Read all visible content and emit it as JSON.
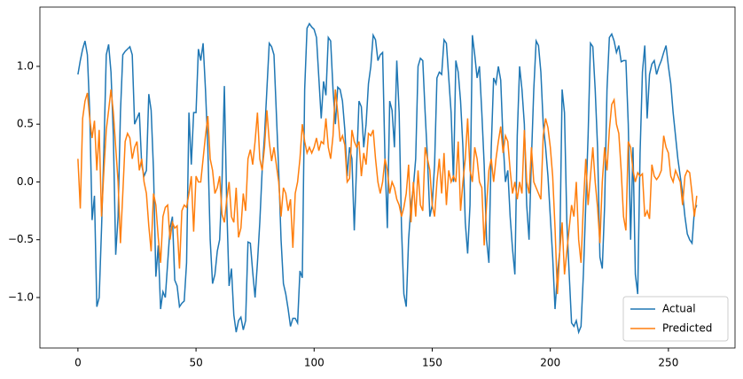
{
  "chart_data": {
    "type": "line",
    "x": [
      0,
      1,
      2,
      3,
      4,
      5,
      6,
      7,
      8,
      9,
      10,
      11,
      12,
      13,
      14,
      15,
      16,
      17,
      18,
      19,
      20,
      21,
      22,
      23,
      24,
      25,
      26,
      27,
      28,
      29,
      30,
      31,
      32,
      33,
      34,
      35,
      36,
      37,
      38,
      39,
      40,
      41,
      42,
      43,
      44,
      45,
      46,
      47,
      48,
      49,
      50,
      51,
      52,
      53,
      54,
      55,
      56,
      57,
      58,
      59,
      60,
      61,
      62,
      63,
      64,
      65,
      66,
      67,
      68,
      69,
      70,
      71,
      72,
      73,
      74,
      75,
      76,
      77,
      78,
      79,
      80,
      81,
      82,
      83,
      84,
      85,
      86,
      87,
      88,
      89,
      90,
      91,
      92,
      93,
      94,
      95,
      96,
      97,
      98,
      99,
      100,
      101,
      102,
      103,
      104,
      105,
      106,
      107,
      108,
      109,
      110,
      111,
      112,
      113,
      114,
      115,
      116,
      117,
      118,
      119,
      120,
      121,
      122,
      123,
      124,
      125,
      126,
      127,
      128,
      129,
      130,
      131,
      132,
      133,
      134,
      135,
      136,
      137,
      138,
      139,
      140,
      141,
      142,
      143,
      144,
      145,
      146,
      147,
      148,
      149,
      150,
      151,
      152,
      153,
      154,
      155,
      156,
      157,
      158,
      159,
      160,
      161,
      162,
      163,
      164,
      165,
      166,
      167,
      168,
      169,
      170,
      171,
      172,
      173,
      174,
      175,
      176,
      177,
      178,
      179,
      180,
      181,
      182,
      183,
      184,
      185,
      186,
      187,
      188,
      189,
      190,
      191,
      192,
      193,
      194,
      195,
      196,
      197,
      198,
      199,
      200,
      201,
      202,
      203,
      204,
      205,
      206,
      207,
      208,
      209,
      210,
      211,
      212,
      213,
      214,
      215,
      216,
      217,
      218,
      219,
      220,
      221,
      222,
      223,
      224,
      225,
      226,
      227,
      228,
      229,
      230,
      231,
      232,
      233,
      234,
      235,
      236,
      237,
      238,
      239,
      240,
      241,
      242,
      243,
      244,
      245,
      246,
      247,
      248,
      249,
      250,
      251,
      252,
      253,
      254,
      255,
      256,
      257,
      258,
      259,
      260,
      261,
      262
    ],
    "series": [
      {
        "name": "Actual",
        "color": "#1f77b4",
        "values": [
          0.93,
          1.05,
          1.15,
          1.22,
          1.1,
          0.6,
          -0.33,
          -0.12,
          -1.08,
          -1.0,
          -0.4,
          0.28,
          1.1,
          1.19,
          0.95,
          0.4,
          -0.63,
          -0.3,
          0.6,
          1.1,
          1.13,
          1.15,
          1.17,
          1.1,
          0.5,
          0.55,
          0.6,
          0.15,
          0.05,
          0.1,
          0.76,
          0.62,
          0.1,
          -0.82,
          -0.55,
          -1.1,
          -0.95,
          -1.0,
          -0.7,
          -0.4,
          -0.3,
          -0.85,
          -0.9,
          -1.08,
          -1.05,
          -1.03,
          -0.7,
          0.6,
          0.15,
          0.6,
          0.6,
          1.15,
          1.05,
          1.2,
          0.8,
          0.3,
          -0.5,
          -0.88,
          -0.8,
          -0.6,
          -0.5,
          0.0,
          0.83,
          -0.2,
          -0.9,
          -0.75,
          -1.15,
          -1.3,
          -1.2,
          -1.17,
          -1.28,
          -1.2,
          -0.52,
          -0.53,
          -0.78,
          -1.0,
          -0.7,
          -0.35,
          0.1,
          0.4,
          0.8,
          1.2,
          1.17,
          1.1,
          0.6,
          0.1,
          -0.5,
          -0.88,
          -0.97,
          -1.1,
          -1.25,
          -1.18,
          -1.18,
          -1.22,
          -0.77,
          -0.83,
          0.8,
          1.33,
          1.37,
          1.34,
          1.32,
          1.25,
          0.9,
          0.55,
          0.87,
          0.75,
          1.25,
          1.22,
          0.8,
          0.5,
          0.82,
          0.8,
          0.7,
          0.45,
          0.05,
          0.3,
          0.2,
          -0.42,
          0.15,
          0.7,
          0.65,
          0.3,
          0.5,
          0.85,
          1.0,
          1.27,
          1.23,
          1.05,
          1.1,
          1.12,
          0.2,
          -0.4,
          0.7,
          0.62,
          0.3,
          1.05,
          0.6,
          -0.4,
          -0.97,
          -1.08,
          -0.5,
          -0.2,
          -0.05,
          0.2,
          1.0,
          1.07,
          1.05,
          0.6,
          0.2,
          -0.3,
          -0.2,
          0.15,
          0.9,
          0.95,
          0.93,
          1.23,
          1.2,
          0.9,
          0.6,
          0.0,
          1.05,
          0.95,
          0.7,
          0.3,
          -0.35,
          -0.62,
          -0.2,
          1.27,
          1.1,
          0.9,
          1.0,
          0.6,
          0.15,
          -0.5,
          -0.7,
          0.3,
          0.9,
          0.85,
          1.0,
          0.88,
          0.35,
          0.0,
          0.1,
          -0.3,
          -0.58,
          -0.8,
          0.4,
          1.0,
          0.8,
          0.5,
          -0.2,
          -0.5,
          0.2,
          0.8,
          1.22,
          1.18,
          0.95,
          0.5,
          0.3,
          0.05,
          -0.3,
          -0.65,
          -1.1,
          -0.8,
          -0.6,
          0.8,
          0.6,
          -0.35,
          -0.8,
          -1.22,
          -1.25,
          -1.2,
          -1.3,
          -1.25,
          -0.8,
          -0.2,
          0.4,
          1.2,
          1.17,
          0.8,
          0.3,
          -0.65,
          -0.75,
          -0.2,
          0.8,
          1.25,
          1.28,
          1.22,
          1.12,
          1.18,
          1.04,
          1.05,
          1.05,
          0.5,
          -0.5,
          0.3,
          -0.8,
          -0.97,
          0.25,
          0.95,
          1.18,
          0.55,
          0.93,
          1.02,
          1.05,
          0.93,
          1.0,
          1.05,
          1.12,
          1.18,
          1.0,
          0.85,
          0.6,
          0.4,
          0.2,
          0.05,
          -0.1,
          -0.3,
          -0.45,
          -0.5,
          -0.53,
          -0.25,
          -0.2
        ]
      },
      {
        "name": "Predicted",
        "color": "#ff7f0e",
        "values": [
          0.2,
          -0.23,
          0.55,
          0.7,
          0.77,
          0.55,
          0.38,
          0.53,
          0.1,
          0.45,
          -0.3,
          0.1,
          0.45,
          0.62,
          0.8,
          0.6,
          0.3,
          0.0,
          -0.53,
          -0.1,
          0.35,
          0.42,
          0.38,
          0.2,
          0.3,
          0.35,
          0.1,
          0.2,
          0.0,
          -0.1,
          -0.38,
          -0.6,
          -0.1,
          -0.2,
          -0.48,
          -0.7,
          -0.3,
          -0.22,
          -0.2,
          -0.5,
          -0.35,
          -0.4,
          -0.38,
          -0.75,
          -0.25,
          -0.2,
          -0.22,
          -0.1,
          0.05,
          -0.43,
          0.05,
          0.0,
          0.0,
          0.2,
          0.4,
          0.57,
          0.2,
          0.1,
          -0.1,
          -0.05,
          0.05,
          -0.28,
          -0.35,
          -0.15,
          0.0,
          -0.3,
          -0.35,
          -0.05,
          -0.48,
          -0.4,
          -0.1,
          -0.25,
          0.2,
          0.28,
          0.15,
          0.35,
          0.6,
          0.2,
          0.1,
          0.3,
          0.62,
          0.35,
          0.18,
          0.3,
          0.15,
          0.0,
          -0.3,
          -0.05,
          -0.1,
          -0.25,
          -0.15,
          -0.57,
          -0.1,
          0.0,
          0.2,
          0.5,
          0.35,
          0.25,
          0.3,
          0.25,
          0.3,
          0.38,
          0.27,
          0.35,
          0.33,
          0.55,
          0.3,
          0.2,
          0.4,
          0.8,
          0.6,
          0.35,
          0.4,
          0.32,
          0.0,
          0.03,
          0.45,
          0.35,
          0.3,
          0.35,
          0.05,
          0.25,
          0.15,
          0.42,
          0.4,
          0.45,
          0.2,
          0.0,
          -0.1,
          0.0,
          0.2,
          0.1,
          -0.1,
          0.0,
          -0.05,
          -0.15,
          -0.2,
          -0.3,
          -0.22,
          -0.1,
          0.15,
          -0.35,
          0.0,
          -0.3,
          0.1,
          -0.2,
          -0.25,
          0.3,
          0.2,
          0.1,
          -0.2,
          -0.3,
          0.0,
          0.2,
          -0.1,
          0.25,
          -0.2,
          0.1,
          0.0,
          0.05,
          0.0,
          0.35,
          -0.25,
          0.0,
          0.2,
          0.55,
          0.1,
          0.0,
          0.3,
          0.2,
          0.0,
          -0.05,
          -0.55,
          -0.2,
          0.1,
          0.2,
          0.0,
          0.2,
          0.35,
          0.48,
          0.25,
          0.4,
          0.35,
          0.1,
          -0.1,
          0.0,
          -0.15,
          0.0,
          -0.1,
          0.45,
          0.0,
          -0.1,
          0.3,
          0.0,
          -0.05,
          -0.1,
          -0.15,
          0.4,
          0.55,
          0.47,
          0.3,
          0.05,
          -0.4,
          -0.97,
          -0.6,
          -0.35,
          -0.8,
          -0.6,
          -0.4,
          -0.2,
          -0.3,
          0.0,
          -0.5,
          -0.7,
          -0.2,
          0.2,
          -0.2,
          0.05,
          0.3,
          0.0,
          -0.22,
          -0.53,
          0.0,
          0.3,
          0.1,
          0.45,
          0.67,
          0.71,
          0.5,
          0.42,
          0.1,
          -0.3,
          -0.42,
          0.35,
          0.3,
          0.1,
          0.0,
          0.08,
          0.05,
          0.07,
          -0.3,
          -0.25,
          -0.32,
          0.15,
          0.05,
          0.02,
          0.05,
          0.1,
          0.4,
          0.3,
          0.25,
          0.05,
          0.0,
          0.1,
          0.05,
          0.0,
          -0.2,
          0.05,
          0.1,
          0.08,
          -0.1,
          -0.3,
          -0.12
        ]
      }
    ],
    "xlim": [
      -16.1,
      278.2
    ],
    "ylim": [
      -1.437,
      1.513
    ],
    "xticks": [
      0,
      50,
      100,
      150,
      200,
      250
    ],
    "yticks": [
      {
        "value": -1,
        "label": "−1.0"
      },
      {
        "value": -0.5,
        "label": "−0.5"
      },
      {
        "value": 0,
        "label": "0.0"
      },
      {
        "value": 0.5,
        "label": "0.5"
      },
      {
        "value": 1,
        "label": "1.0"
      }
    ],
    "legend": "lower right",
    "grid": false
  }
}
